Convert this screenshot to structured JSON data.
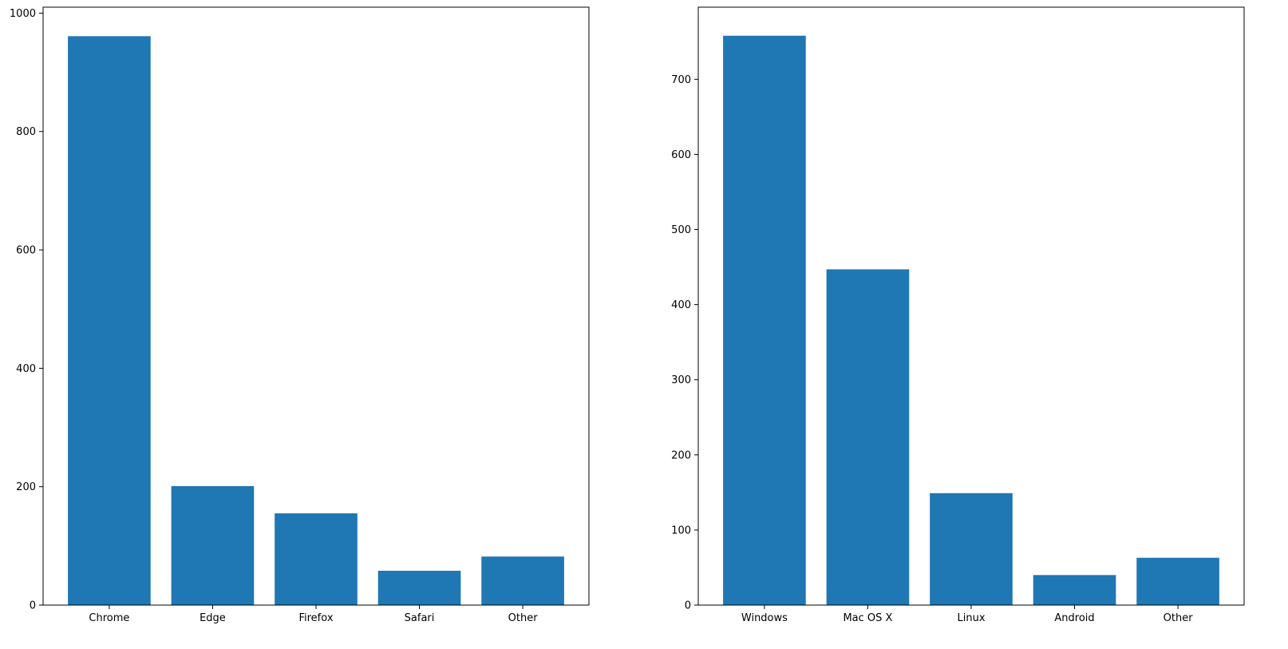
{
  "chart_data": [
    {
      "type": "bar",
      "title": "",
      "xlabel": "",
      "ylabel": "",
      "categories": [
        "Chrome",
        "Edge",
        "Firefox",
        "Safari",
        "Other"
      ],
      "values": [
        961,
        201,
        155,
        58,
        82
      ],
      "ylim": [
        0,
        1010
      ],
      "yticks": [
        0,
        200,
        400,
        600,
        800,
        1000
      ],
      "color": "#1f77b4",
      "grid": false
    },
    {
      "type": "bar",
      "title": "",
      "xlabel": "",
      "ylabel": "",
      "categories": [
        "Windows",
        "Mac OS X",
        "Linux",
        "Android",
        "Other"
      ],
      "values": [
        758,
        447,
        149,
        40,
        63
      ],
      "ylim": [
        0,
        796
      ],
      "yticks": [
        0,
        100,
        200,
        300,
        400,
        500,
        600,
        700
      ],
      "color": "#1f77b4",
      "grid": false
    }
  ]
}
